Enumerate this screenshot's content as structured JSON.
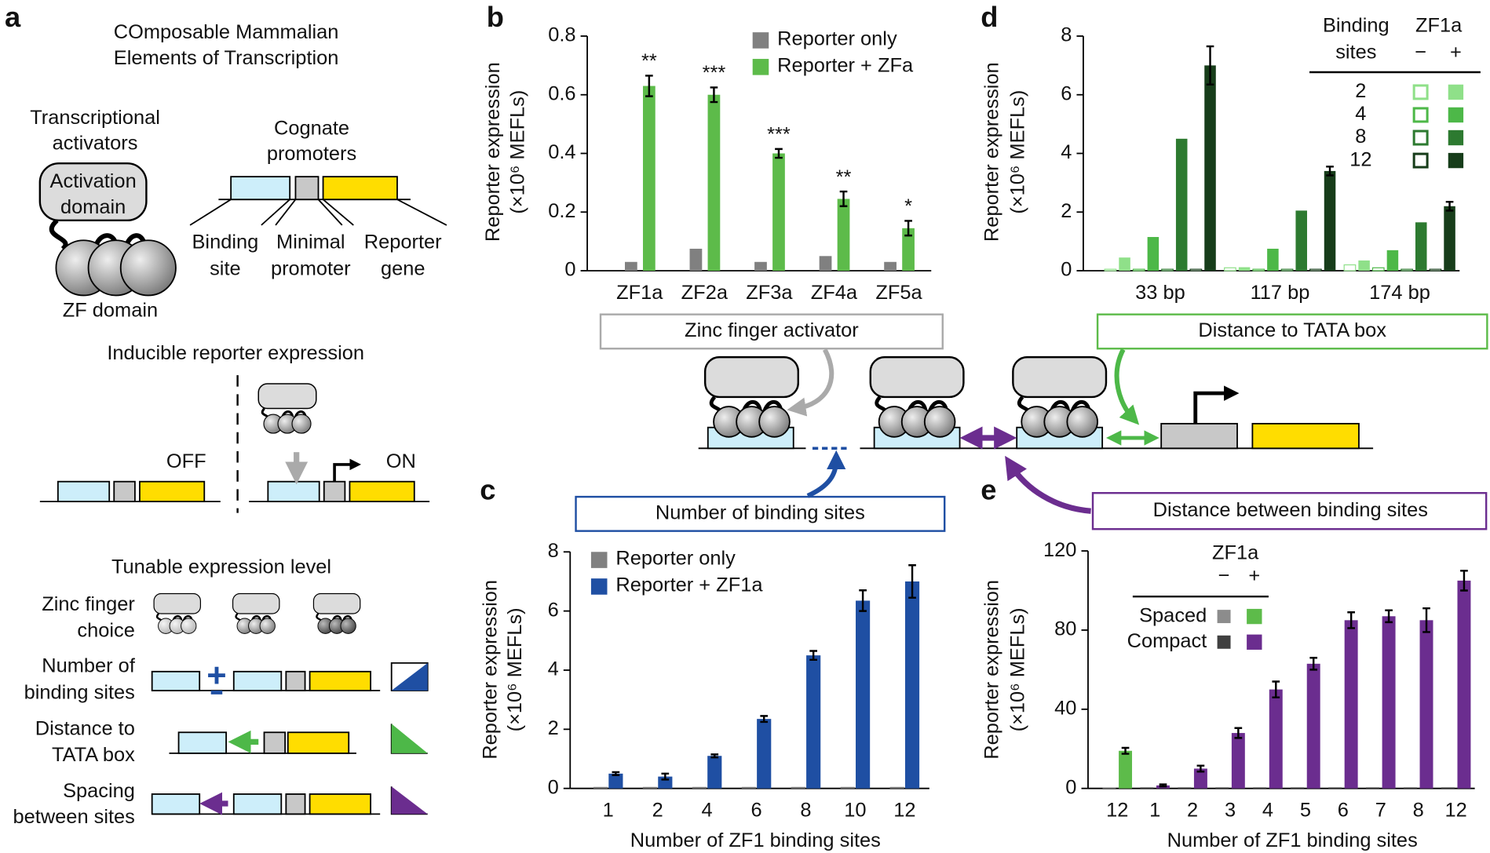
{
  "panel_labels": {
    "a": "a",
    "b": "b",
    "c": "c",
    "d": "d",
    "e": "e"
  },
  "panel_a": {
    "title": [
      "COmposable Mammalian",
      "Elements of Transcription"
    ],
    "activators_label": [
      "Transcriptional",
      "activators"
    ],
    "activation_domain": [
      "Activation",
      "domain"
    ],
    "zf_domain": "ZF domain",
    "promoters_label": [
      "Cognate",
      "promoters"
    ],
    "parts": [
      [
        "Binding",
        "site"
      ],
      [
        "Minimal",
        "promoter"
      ],
      [
        "Reporter",
        "gene"
      ]
    ],
    "inducible_title": "Inducible reporter expression",
    "off": "OFF",
    "on": "ON",
    "tunable_title": "Tunable expression level",
    "tunable_rows": [
      [
        "Zinc finger",
        "choice"
      ],
      [
        "Number of",
        "binding sites"
      ],
      [
        "Distance to",
        "TATA box"
      ],
      [
        "Spacing",
        "between sites"
      ]
    ]
  },
  "center_diagram": {
    "zinc_finger_activator": "Zinc finger activator",
    "distance_to_tata": "Distance to TATA box",
    "number_of_sites": "Number of binding sites",
    "distance_between_sites": "Distance between binding sites"
  },
  "chart_data": [
    {
      "type": "bar",
      "y_label": [
        "Reporter expression",
        "(×10⁶ MEFLs)"
      ],
      "categories": [
        "ZF1a",
        "ZF2a",
        "ZF3a",
        "ZF4a",
        "ZF5a"
      ],
      "series": [
        {
          "name": "Reporter only",
          "color": "#808080",
          "values": [
            0.03,
            0.075,
            0.03,
            0.05,
            0.03
          ]
        },
        {
          "name": "Reporter + ZFa",
          "color": "#5dbb4a",
          "values": [
            0.63,
            0.6,
            0.4,
            0.245,
            0.145
          ],
          "errors": [
            0.035,
            0.025,
            0.015,
            0.025,
            0.025
          ]
        }
      ],
      "annotations": [
        "**",
        "***",
        "***",
        "**",
        "*"
      ],
      "ylim": [
        0,
        0.8
      ],
      "yticks": [
        0,
        0.2,
        0.4,
        0.6,
        0.8
      ],
      "legend": "upper right"
    },
    {
      "type": "bar",
      "y_label": [
        "Reporter expression",
        "(×10⁶ MEFLs)"
      ],
      "x_label": "Number of ZF1 binding sites",
      "categories": [
        "1",
        "2",
        "4",
        "6",
        "8",
        "10",
        "12"
      ],
      "series": [
        {
          "name": "Reporter only",
          "color": "#808080",
          "values": [
            0.05,
            0.05,
            0.05,
            0.05,
            0.05,
            0.05,
            0.05
          ]
        },
        {
          "name": "Reporter + ZF1a",
          "color": "#1f4fa3",
          "values": [
            0.5,
            0.4,
            1.1,
            2.35,
            4.5,
            6.35,
            7.0
          ],
          "errors": [
            0.05,
            0.1,
            0.05,
            0.1,
            0.15,
            0.35,
            0.55
          ]
        }
      ],
      "ylim": [
        0,
        8
      ],
      "yticks": [
        0,
        2,
        4,
        6,
        8
      ],
      "legend": "upper left"
    },
    {
      "type": "paired_bar",
      "y_label": [
        "Reporter expression",
        "(×10⁶ MEFLs)"
      ],
      "legend_title": [
        "Binding",
        "sites"
      ],
      "condition_title": "ZF1a",
      "condition_labels": [
        "−",
        "+"
      ],
      "categories": [
        "33 bp",
        "117 bp",
        "174 bp"
      ],
      "series": [
        {
          "name": "2",
          "color": "#8fe089",
          "minus": [
            0.05,
            0.1,
            0.2
          ],
          "plus": [
            0.45,
            0.12,
            0.35
          ]
        },
        {
          "name": "4",
          "color": "#4db848",
          "minus": [
            0.05,
            0.05,
            0.1
          ],
          "plus": [
            1.15,
            0.75,
            0.7
          ]
        },
        {
          "name": "8",
          "color": "#2d7a30",
          "minus": [
            0.05,
            0.05,
            0.05
          ],
          "plus": [
            4.5,
            2.05,
            1.65
          ]
        },
        {
          "name": "12",
          "color": "#173d1a",
          "minus": [
            0.05,
            0.05,
            0.05
          ],
          "plus": [
            7.0,
            3.4,
            2.2
          ],
          "plus_errors": [
            0.65,
            0.15,
            0.15
          ]
        }
      ],
      "ylim": [
        0,
        8
      ],
      "yticks": [
        0,
        2,
        4,
        6,
        8
      ],
      "legend": "upper right"
    },
    {
      "type": "paired_bar",
      "y_label": [
        "Reporter expression",
        "(×10⁶ MEFLs)"
      ],
      "x_label": "Number of ZF1 binding sites",
      "condition_title": "ZF1a",
      "condition_labels": [
        "−",
        "+"
      ],
      "categories": [
        "12",
        "1",
        "2",
        "3",
        "4",
        "5",
        "6",
        "7",
        "8",
        "12"
      ],
      "series": [
        {
          "name": "Spaced",
          "minus_color": "#8c8c8c",
          "color": "#5dbb4a",
          "minus": [
            0.5,
            null,
            null,
            null,
            null,
            null,
            null,
            null,
            null,
            null
          ],
          "plus": [
            19,
            null,
            null,
            null,
            null,
            null,
            null,
            null,
            null,
            null
          ],
          "plus_errors": [
            1.5,
            null,
            null,
            null,
            null,
            null,
            null,
            null,
            null,
            null
          ]
        },
        {
          "name": "Compact",
          "minus_color": "#404040",
          "color": "#6b2d8f",
          "minus": [
            null,
            0.5,
            0.5,
            0.5,
            0.5,
            0.5,
            0.5,
            0.5,
            0.5,
            0.5
          ],
          "plus": [
            null,
            1.5,
            10,
            28,
            50,
            63,
            85,
            87,
            85,
            105
          ],
          "plus_errors": [
            null,
            0.5,
            1.5,
            2.5,
            4,
            3,
            4,
            3,
            6,
            5
          ]
        }
      ],
      "ylim": [
        0,
        120
      ],
      "yticks": [
        0,
        40,
        80,
        120
      ],
      "legend": "upper left"
    }
  ]
}
